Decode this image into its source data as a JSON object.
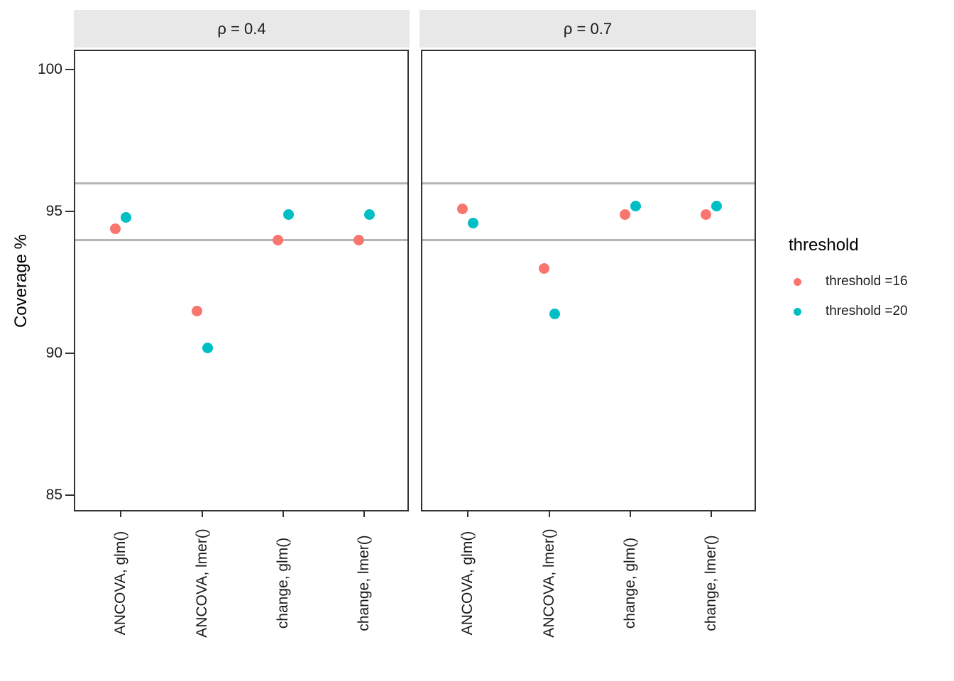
{
  "figure": {
    "ylabel": "Coverage %",
    "legend": {
      "title": "threshold",
      "entries": [
        {
          "label": "threshold =16",
          "color": "#F8766D"
        },
        {
          "label": "threshold =20",
          "color": "#00BFC4"
        }
      ]
    },
    "colors": {
      "threshold_16": "#F8766D",
      "threshold_20": "#00BFC4",
      "strip_background": "#E8E8E8",
      "reference_line": "#B5B5B5",
      "panel_border": "#333333"
    }
  },
  "chart_data": {
    "type": "scatter",
    "title": "",
    "xlabel": "",
    "ylabel": "Coverage %",
    "categories": [
      "ANCOVA, glm()",
      "ANCOVA, lmer()",
      "change, glm()",
      "change, lmer()"
    ],
    "yticks": [
      100,
      95,
      90,
      85
    ],
    "ylim": [
      84.4,
      100.7
    ],
    "grid": "off",
    "reference_lines": [
      96,
      94
    ],
    "legend_position": "right",
    "legend_title": "threshold",
    "facets": [
      {
        "label": "ρ = 0.4",
        "series": [
          {
            "name": "threshold =16",
            "color": "#F8766D",
            "values": [
              94.4,
              91.5,
              94.0,
              94.0
            ]
          },
          {
            "name": "threshold =20",
            "color": "#00BFC4",
            "values": [
              94.8,
              90.2,
              94.9,
              94.9
            ]
          }
        ]
      },
      {
        "label": "ρ = 0.7",
        "series": [
          {
            "name": "threshold =16",
            "color": "#F8766D",
            "values": [
              95.1,
              93.0,
              94.9,
              94.9
            ]
          },
          {
            "name": "threshold =20",
            "color": "#00BFC4",
            "values": [
              94.6,
              91.4,
              95.2,
              95.2
            ]
          }
        ]
      }
    ]
  }
}
